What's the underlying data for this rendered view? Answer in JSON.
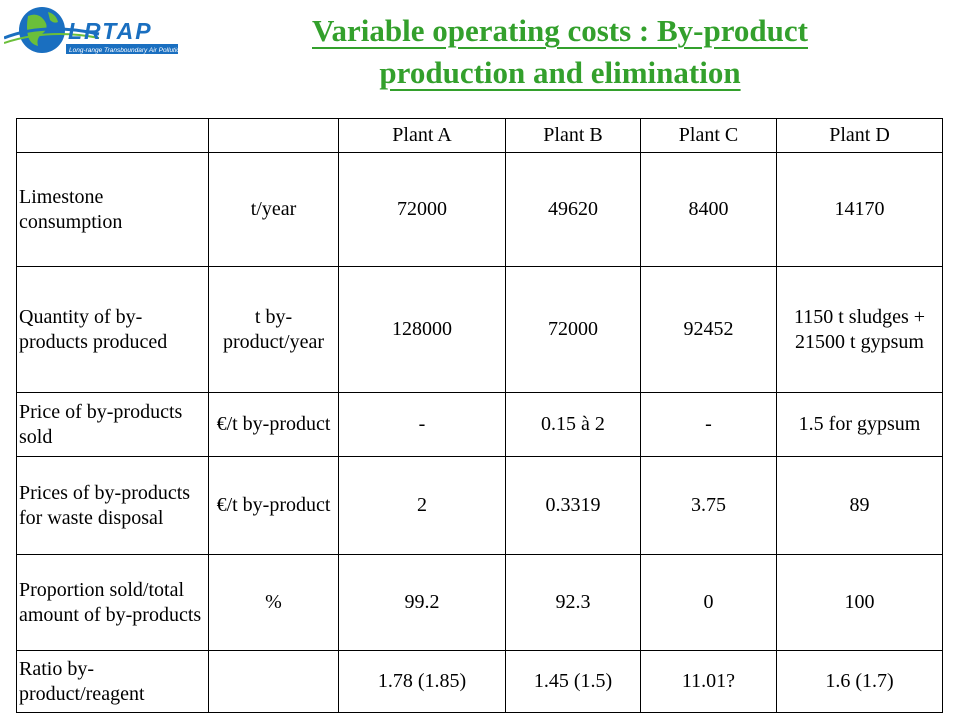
{
  "logo": {
    "text": "LRTAP",
    "subtitle": "Long-range Transboundary Air Pollution"
  },
  "title": {
    "line1": "Variable operating costs : By-product",
    "line2": "production and elimination"
  },
  "table": {
    "headers": [
      "",
      "",
      "Plant A",
      "Plant B",
      "Plant C",
      "Plant D"
    ],
    "rows": [
      {
        "label": "Limestone consumption",
        "unit": "t/year",
        "values": [
          "72000",
          "49620",
          "8400",
          "14170"
        ]
      },
      {
        "label": "Quantity of by-products produced",
        "unit": "t by-product/year",
        "values": [
          "128000",
          "72000",
          "92452",
          "1150 t sludges + 21500 t gypsum"
        ]
      },
      {
        "label": "Price of by-products sold",
        "unit": "€/t by-product",
        "values": [
          "-",
          "0.15  à 2",
          "-",
          "1.5 for gypsum"
        ]
      },
      {
        "label": "Prices of by-products for waste disposal",
        "unit": "€/t by-product",
        "values": [
          "2",
          "0.3319",
          "3.75",
          "89"
        ]
      },
      {
        "label": "Proportion sold/total amount of by-products",
        "unit": "%",
        "values": [
          "99.2",
          "92.3",
          "0",
          "100"
        ]
      },
      {
        "label": "Ratio by-product/reagent",
        "unit": "",
        "values": [
          "1.78 (1.85)",
          "1.45 (1.5)",
          "11.01?",
          "1.6 (1.7)"
        ]
      }
    ]
  },
  "colors": {
    "title": "#33a02c",
    "logo_blue": "#1a6fc0",
    "logo_green": "#6bbf3a"
  }
}
